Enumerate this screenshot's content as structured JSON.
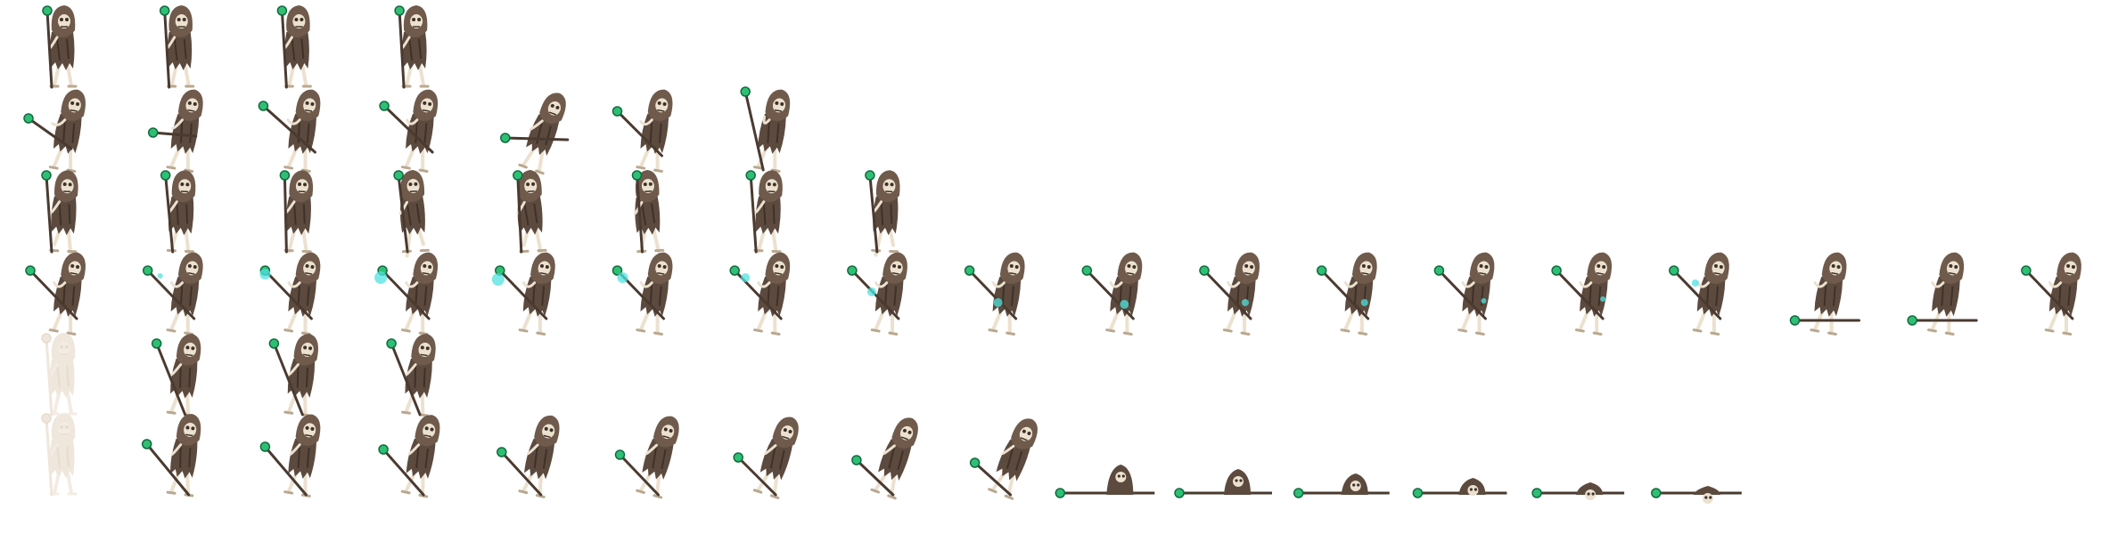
{
  "sprite_sheet": {
    "character": "skeleton-shaman-with-green-orb-staff",
    "background": "#ffffff",
    "palette": {
      "hood": "#6f5a4c",
      "robe": "#5c4a3e",
      "robe_dark": "#3f3129",
      "bone": "#ece1cf",
      "bone_shadow": "#b9a890",
      "staff": "#4a3a30",
      "orb": "#2fbf74",
      "orb_dark": "#116b3f",
      "magic": "#4fe3e0",
      "ghost": "#efe6dc"
    },
    "rows": [
      {
        "name": "idle",
        "frames": 4
      },
      {
        "name": "attack-swing",
        "frames": 7
      },
      {
        "name": "walk",
        "frames": 8
      },
      {
        "name": "cast-spell",
        "frames": 18
      },
      {
        "name": "hurt",
        "frames": 4
      },
      {
        "name": "death",
        "frames": 15
      }
    ]
  }
}
